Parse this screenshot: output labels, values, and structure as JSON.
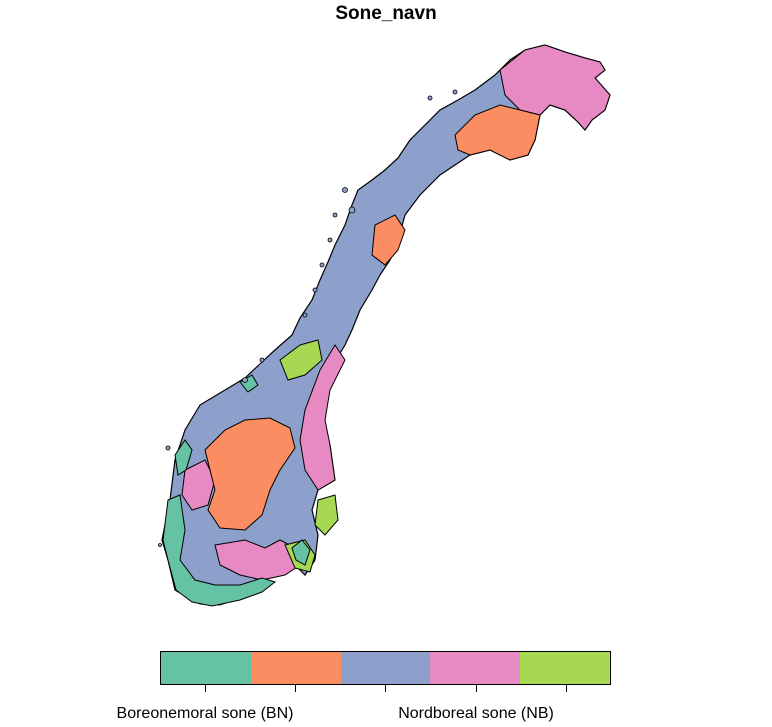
{
  "title": "Sone_navn",
  "legend": {
    "colors": [
      "#66c2a5",
      "#fc8d62",
      "#8da0cb",
      "#e78ac3",
      "#a6d854"
    ],
    "labels_shown": [
      "Boreonemoral sone (BN)",
      "Nordboreal sone (NB)"
    ]
  },
  "map": {
    "region": "Norway",
    "zone_colors": {
      "BN": "#66c2a5",
      "orange": "#fc8d62",
      "blue": "#8da0cb",
      "NB": "#e78ac3",
      "green": "#a6d854"
    }
  }
}
